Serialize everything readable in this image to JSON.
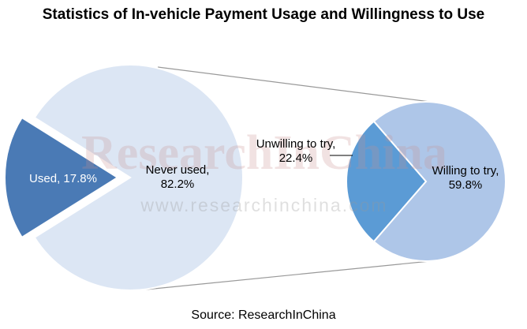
{
  "chart_data": {
    "type": "pie-of-pie",
    "title": "Statistics of In-vehicle Payment Usage and Willingness to Use",
    "values": [
      17.8,
      82.2
    ],
    "value_labels": [
      "Used, 17.8%",
      "Never used,\n82.2%"
    ],
    "colors": [
      "#4a7ab5",
      "#dce6f4"
    ],
    "breakdown": {
      "values": [
        22.4,
        59.8
      ],
      "value_labels": [
        "Unwilling to try,\n22.4%",
        "Willing to try,\n59.8%"
      ],
      "colors": [
        "#5b9bd5",
        "#aec6e8"
      ]
    },
    "watermark": "ResearchInChina",
    "watermark_url": "www.researchinchina.com",
    "source": "Source: ResearchInChina"
  }
}
